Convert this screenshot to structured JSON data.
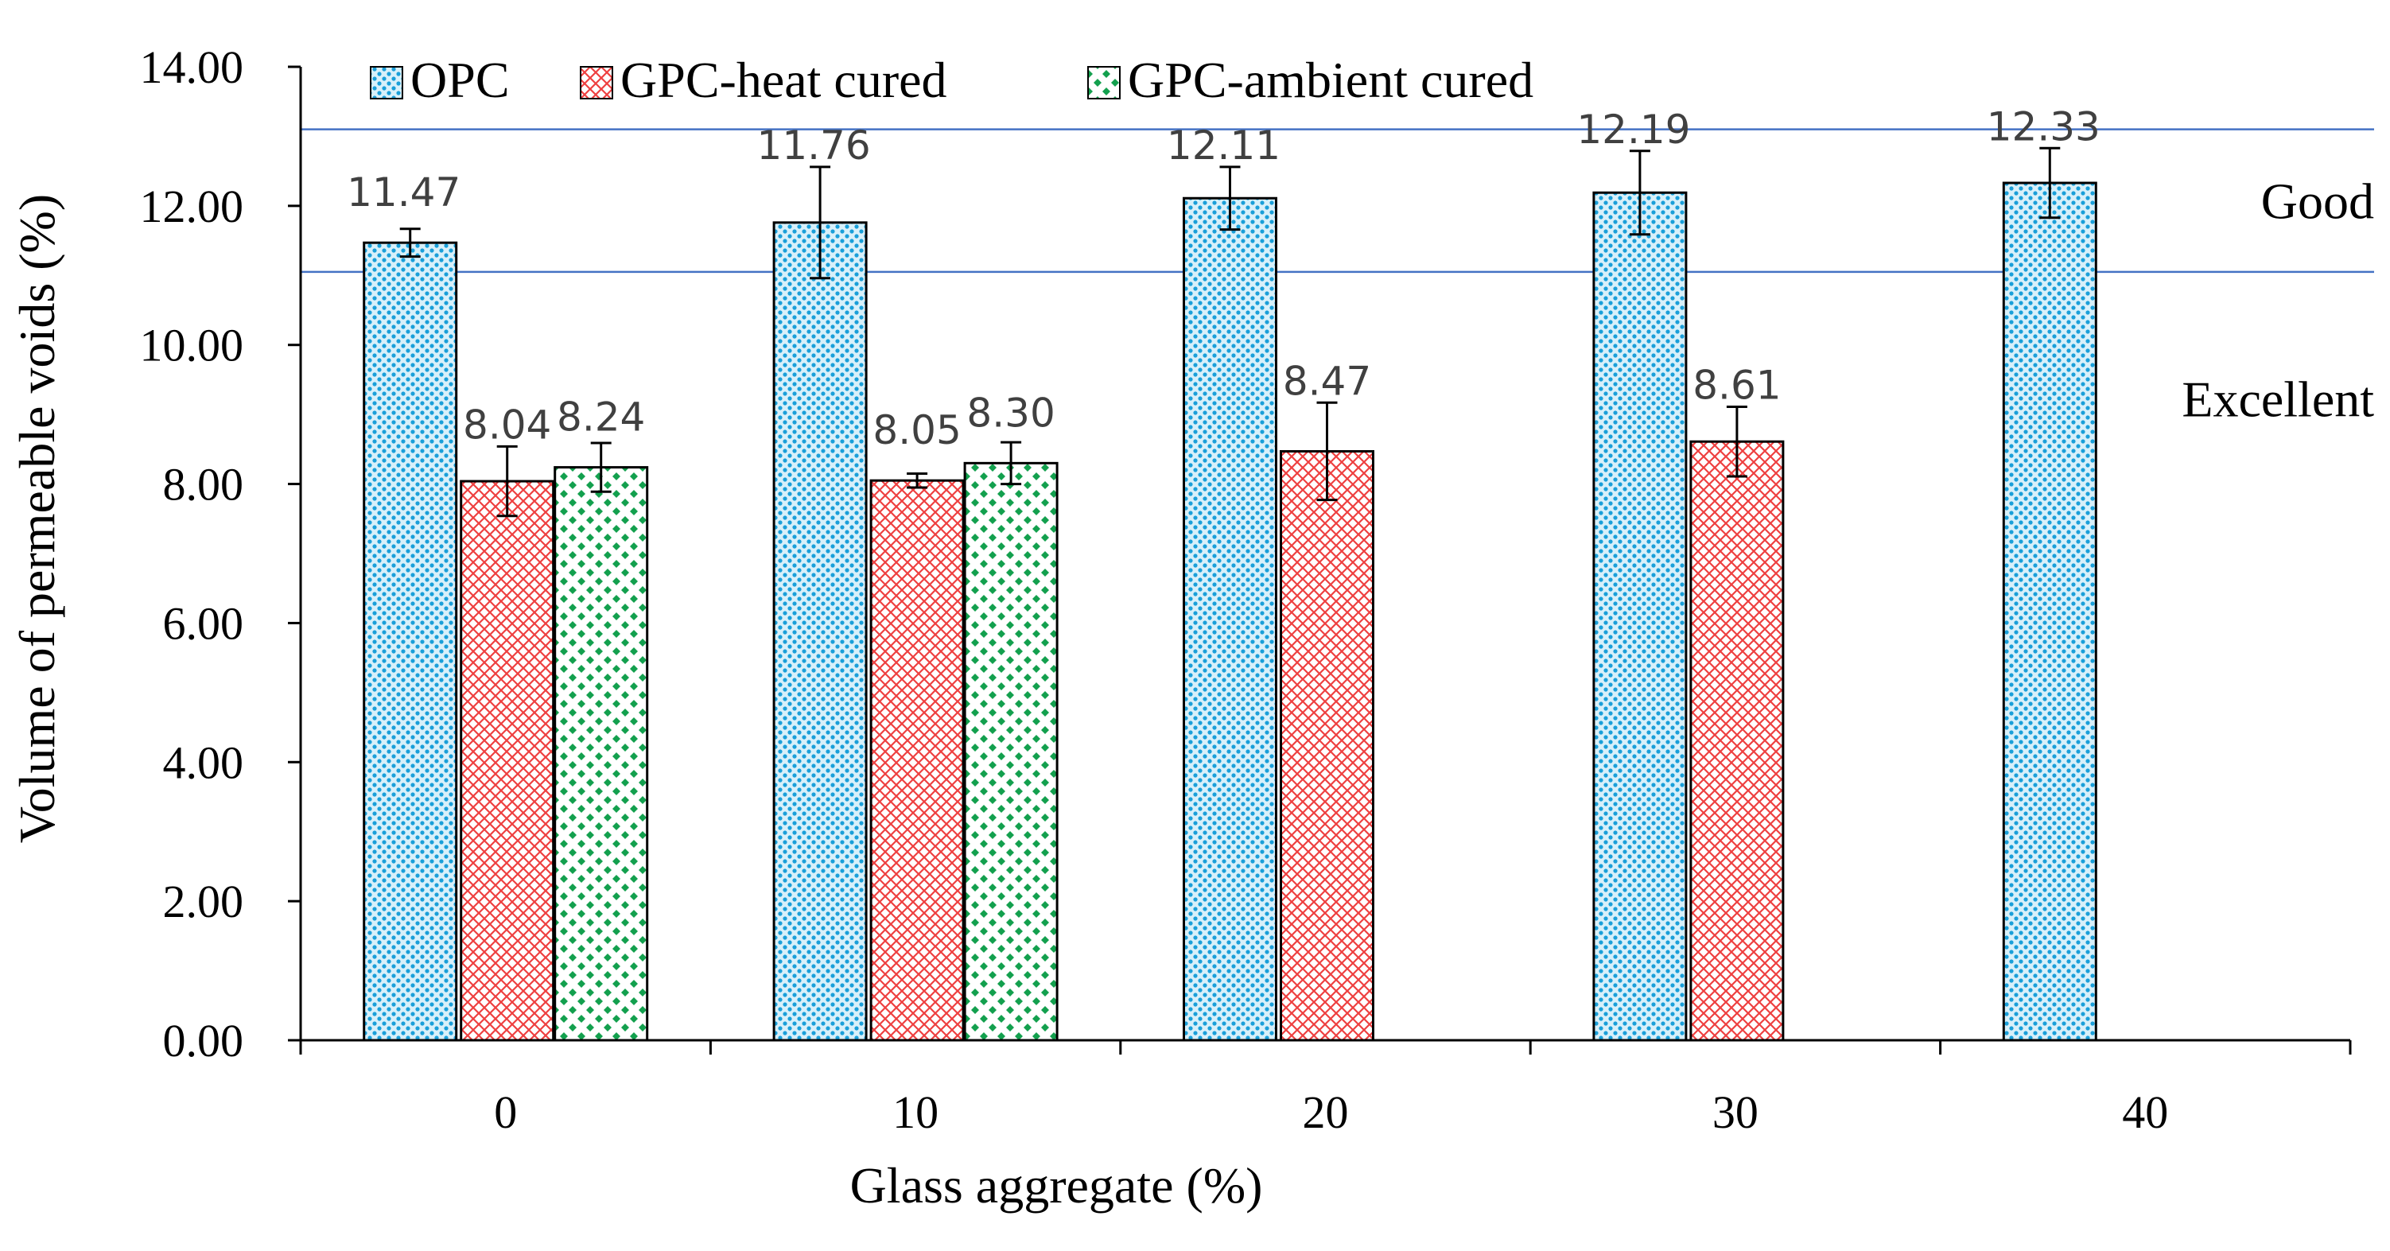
{
  "chart_data": {
    "type": "bar",
    "xlabel": "Glass aggregate (%)",
    "ylabel": "Volume of permeable voids (%)",
    "ylim": [
      0,
      14
    ],
    "yticks": [
      "0.00",
      "2.00",
      "4.00",
      "6.00",
      "8.00",
      "10.00",
      "12.00",
      "14.00"
    ],
    "categories": [
      "0",
      "10",
      "20",
      "30",
      "40"
    ],
    "legend_position": "top-left",
    "series": [
      {
        "name": "OPC",
        "values": [
          11.47,
          11.76,
          12.11,
          12.19,
          12.33
        ],
        "labels": [
          "11.47",
          "11.76",
          "12.11",
          "12.19",
          "12.33"
        ],
        "errors": [
          0.2,
          0.8,
          0.45,
          0.6,
          0.5
        ]
      },
      {
        "name": "GPC-heat cured",
        "values": [
          8.04,
          8.05,
          8.47,
          8.61,
          null
        ],
        "labels": [
          "8.04",
          "8.05",
          "8.47",
          "8.61",
          ""
        ],
        "errors": [
          0.5,
          0.1,
          0.7,
          0.5,
          null
        ]
      },
      {
        "name": "GPC-ambient cured",
        "values": [
          8.24,
          8.3,
          null,
          null,
          null
        ],
        "labels": [
          "8.24",
          "8.30",
          "",
          "",
          ""
        ],
        "errors": [
          0.35,
          0.3,
          null,
          null,
          null
        ]
      }
    ],
    "reference_lines": [
      13.1,
      11.05
    ],
    "annotations": [
      {
        "text": "Good",
        "y": 12.05
      },
      {
        "text": "Excellent",
        "y": 9.2
      }
    ],
    "colors": {
      "opc_bg": "#d8f0fa",
      "opc_dot": "#1a9fd9",
      "heat_bg": "#ffffff",
      "heat_line": "#ee4040",
      "amb_bg": "#ffffff",
      "amb_dot": "#13a04e",
      "ref_line": "#4472c4",
      "axis": "#000000",
      "value_label": "#404040"
    }
  }
}
